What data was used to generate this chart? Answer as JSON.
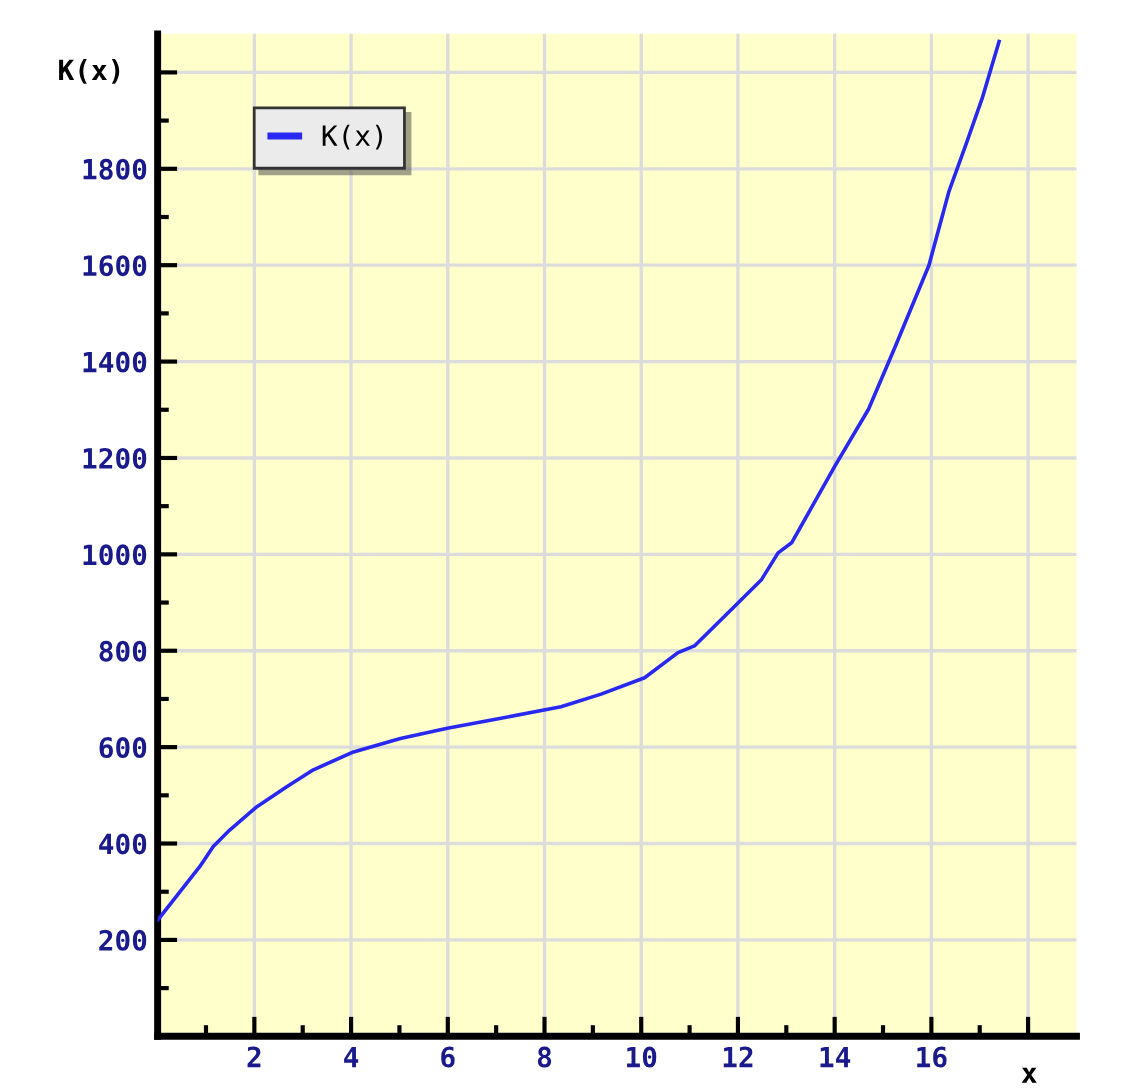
{
  "chart_data": {
    "type": "line",
    "xlabel": "x",
    "ylabel": "K(x)",
    "xlim": [
      0,
      19
    ],
    "ylim": [
      0,
      2080
    ],
    "xticks": [
      2,
      4,
      6,
      8,
      10,
      12,
      14,
      16,
      {
        "value": 18,
        "label": null
      }
    ],
    "yticks": [
      200,
      400,
      600,
      800,
      1000,
      1200,
      1400,
      1600,
      1800,
      {
        "value": 2000,
        "label": null
      }
    ],
    "grid": true,
    "legend": "top left",
    "marker": "none",
    "line_style": "solid",
    "series": [
      {
        "name": "K(x)",
        "color": "#2828f0",
        "x": [
          0,
          0.87,
          1.15,
          1.49,
          2.06,
          2.67,
          3.22,
          4.05,
          5.02,
          5.99,
          7.1,
          8.34,
          9.17,
          10.07,
          10.76,
          11.1,
          11.87,
          12.49,
          12.83,
          13.11,
          14.01,
          14.7,
          15.26,
          15.95,
          16.36,
          16.71,
          17.05,
          17.4
        ],
        "values": [
          241,
          352,
          394,
          428,
          477,
          518,
          553,
          590,
          618,
          639,
          660,
          684,
          710,
          744,
          796,
          810,
          886,
          948,
          1003,
          1024,
          1184,
          1301,
          1433,
          1600,
          1752,
          1849,
          1946,
          2064
        ]
      }
    ]
  }
}
